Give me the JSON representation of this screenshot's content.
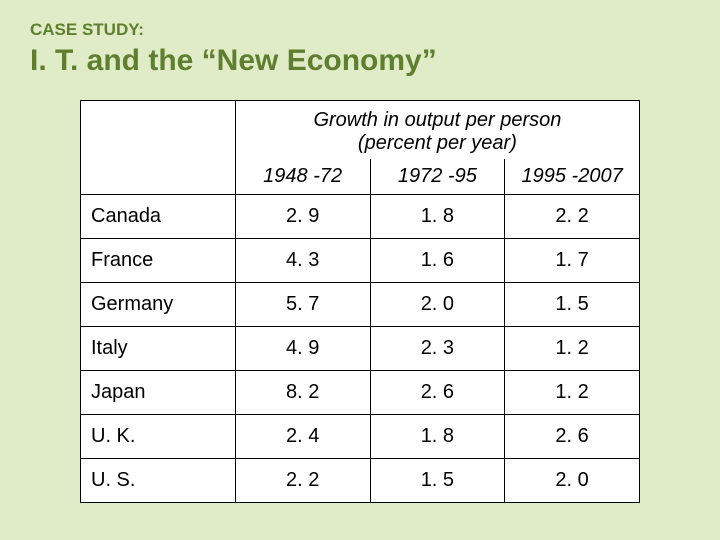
{
  "slide": {
    "background_color": "#e0ebc7",
    "case_study_label": "CASE STUDY:",
    "title": "I. T. and the “New Economy”",
    "heading_color": "#5f7f2f",
    "heading_font": "Verdana",
    "heading_label_fontsize": 17,
    "heading_title_fontsize": 30
  },
  "table": {
    "type": "table",
    "header_title_line1": "Growth in output per person",
    "header_title_line2": "(percent per year)",
    "periods": [
      "1948 -72",
      "1972 -95",
      "1995 -2007"
    ],
    "countries": [
      "Canada",
      "France",
      "Germany",
      "Italy",
      "Japan",
      "U. K.",
      "U. S."
    ],
    "rows": [
      [
        "2. 9",
        "1. 8",
        "2. 2"
      ],
      [
        "4. 3",
        "1. 6",
        "1. 7"
      ],
      [
        "5. 7",
        "2. 0",
        "1. 5"
      ],
      [
        "4. 9",
        "2. 3",
        "1. 2"
      ],
      [
        "8. 2",
        "2. 6",
        "1. 2"
      ],
      [
        "2. 4",
        "1. 8",
        "2. 6"
      ],
      [
        "2. 2",
        "1. 5",
        "2. 0"
      ]
    ],
    "background_color": "#ffffff",
    "border_color": "#000000",
    "text_color": "#000000",
    "font_family": "Arial",
    "cell_fontsize": 20,
    "header_italic": true,
    "country_col_width": 155,
    "value_col_width": 135
  }
}
